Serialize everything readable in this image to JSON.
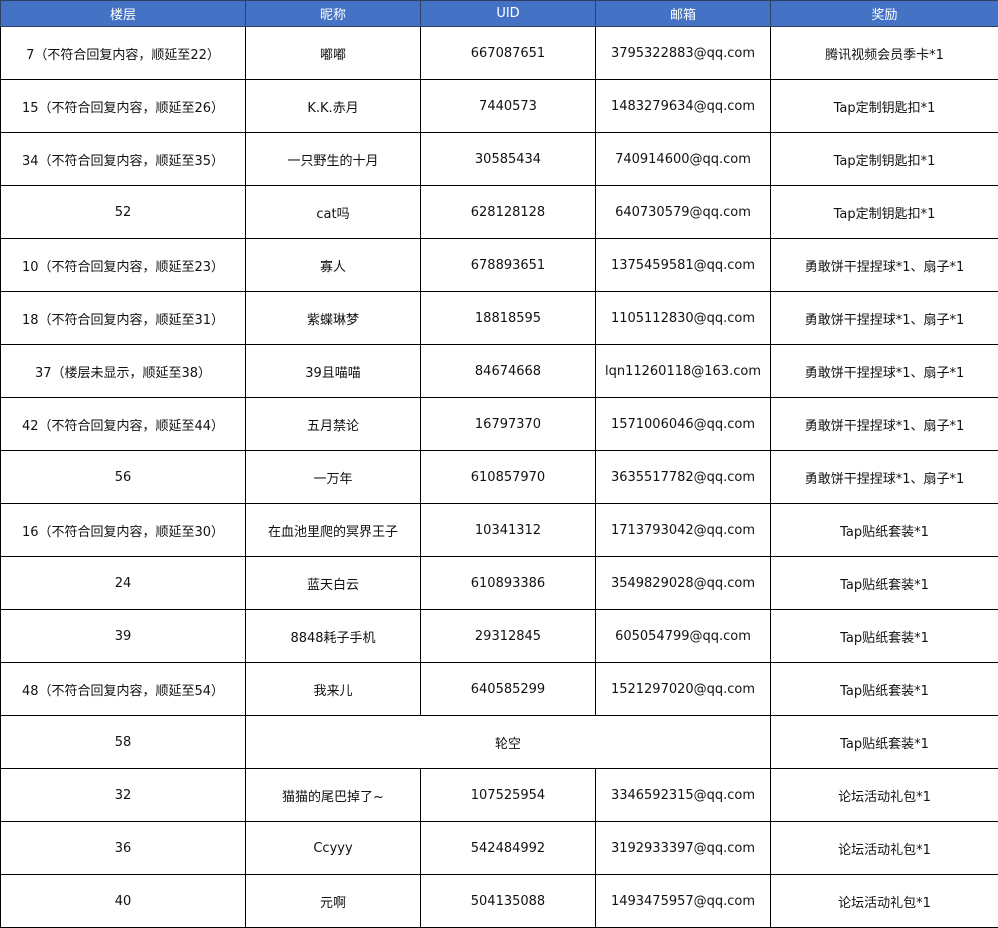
{
  "header_color": "#4472C4",
  "columns": [
    "楼层",
    "昵称",
    "UID",
    "邮箱",
    "奖励"
  ],
  "rows": [
    {
      "floor": "7（不符合回复内容，顺延至22）",
      "nickname": "嘟嘟",
      "uid": "667087651",
      "email": "3795322883@qq.com",
      "reward": "腾讯视频会员季卡*1"
    },
    {
      "floor": "15（不符合回复内容，顺延至26）",
      "nickname": "K.K.赤月",
      "uid": "7440573",
      "email": "1483279634@qq.com",
      "reward": "Tap定制钥匙扣*1"
    },
    {
      "floor": "34（不符合回复内容，顺延至35）",
      "nickname": "一只野生的十月",
      "uid": "30585434",
      "email": "740914600@qq.com",
      "reward": "Tap定制钥匙扣*1"
    },
    {
      "floor": "52",
      "nickname": "cat吗",
      "uid": "628128128",
      "email": "640730579@qq.com",
      "reward": "Tap定制钥匙扣*1"
    },
    {
      "floor": "10（不符合回复内容，顺延至23）",
      "nickname": "寡人",
      "uid": "678893651",
      "email": "1375459581@qq.com",
      "reward": "勇敢饼干捏捏球*1、扇子*1"
    },
    {
      "floor": "18（不符合回复内容，顺延至31）",
      "nickname": "紫蝶琳梦",
      "uid": "18818595",
      "email": "1105112830@qq.com",
      "reward": "勇敢饼干捏捏球*1、扇子*1"
    },
    {
      "floor": "37（楼层未显示，顺延至38）",
      "nickname": "39且喵喵",
      "uid": "84674668",
      "email": "lqn11260118@163.com",
      "reward": "勇敢饼干捏捏球*1、扇子*1"
    },
    {
      "floor": "42（不符合回复内容，顺延至44）",
      "nickname": "五月禁论",
      "uid": "16797370",
      "email": "1571006046@qq.com",
      "reward": "勇敢饼干捏捏球*1、扇子*1"
    },
    {
      "floor": "56",
      "nickname": "一万年",
      "uid": "610857970",
      "email": "3635517782@qq.com",
      "reward": "勇敢饼干捏捏球*1、扇子*1"
    },
    {
      "floor": "16（不符合回复内容，顺延至30）",
      "nickname": "在血池里爬的冥界王子",
      "uid": "10341312",
      "email": "1713793042@qq.com",
      "reward": "Tap贴纸套装*1"
    },
    {
      "floor": "24",
      "nickname": "蓝天白云",
      "uid": "610893386",
      "email": "3549829028@qq.com",
      "reward": "Tap贴纸套装*1"
    },
    {
      "floor": "39",
      "nickname": "8848耗子手机",
      "uid": "29312845",
      "email": "605054799@qq.com",
      "reward": "Tap贴纸套装*1"
    },
    {
      "floor": "48（不符合回复内容，顺延至54）",
      "nickname": "我来儿",
      "uid": "640585299",
      "email": "1521297020@qq.com",
      "reward": "Tap贴纸套装*1"
    },
    {
      "floor": "58",
      "merged": "轮空",
      "reward": "Tap贴纸套装*1"
    },
    {
      "floor": "32",
      "nickname": "猫猫的尾巴掉了~",
      "uid": "107525954",
      "email": "3346592315@qq.com",
      "reward": "论坛活动礼包*1"
    },
    {
      "floor": "36",
      "nickname": "Ccyyy",
      "uid": "542484992",
      "email": "3192933397@qq.com",
      "reward": "论坛活动礼包*1"
    },
    {
      "floor": "40",
      "nickname": "元啊",
      "uid": "504135088",
      "email": "1493475957@qq.com",
      "reward": "论坛活动礼包*1"
    }
  ]
}
